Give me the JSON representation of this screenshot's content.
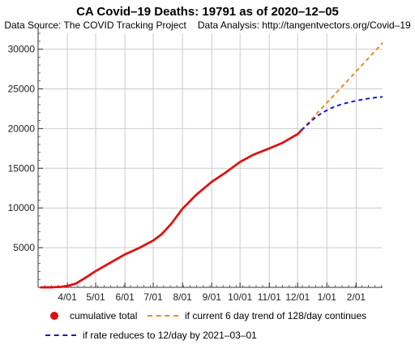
{
  "chart_data": {
    "type": "line",
    "title": "CA Covid–19 Deaths:  19791 as of 2020–12–05",
    "subtitle": {
      "source": "Data Source: The COVID Tracking Project",
      "analysis": "Data Analysis: http://tangentvectors.org/Covid–19"
    },
    "xlabel": "",
    "ylabel": "",
    "x_ticks": [
      "4/01",
      "5/01",
      "6/01",
      "7/01",
      "8/01",
      "9/01",
      "10/01",
      "11/01",
      "12/01",
      "1/01",
      "2/01"
    ],
    "x_tick_dates": [
      "2020-04-01",
      "2020-05-01",
      "2020-06-01",
      "2020-07-01",
      "2020-08-01",
      "2020-09-01",
      "2020-10-01",
      "2020-11-01",
      "2020-12-01",
      "2021-01-01",
      "2021-02-01"
    ],
    "y_ticks": [
      5000,
      10000,
      15000,
      20000,
      25000,
      30000
    ],
    "y_tick_labels": [
      "5000",
      "10000",
      "15000",
      "20000",
      "25000",
      "30000"
    ],
    "xlim": [
      "2020-03-01",
      "2021-03-01"
    ],
    "ylim": [
      0,
      32000
    ],
    "grid": true,
    "series": [
      {
        "name": "cumulative total",
        "style": "points",
        "color": "#e01010",
        "points": [
          [
            "2020-03-04",
            1
          ],
          [
            "2020-03-15",
            6
          ],
          [
            "2020-03-25",
            60
          ],
          [
            "2020-04-01",
            180
          ],
          [
            "2020-04-10",
            480
          ],
          [
            "2020-04-20",
            1200
          ],
          [
            "2020-05-01",
            2050
          ],
          [
            "2020-05-15",
            3000
          ],
          [
            "2020-06-01",
            4150
          ],
          [
            "2020-06-15",
            4900
          ],
          [
            "2020-07-01",
            5900
          ],
          [
            "2020-07-10",
            6700
          ],
          [
            "2020-07-20",
            8000
          ],
          [
            "2020-08-01",
            9900
          ],
          [
            "2020-08-15",
            11600
          ],
          [
            "2020-09-01",
            13300
          ],
          [
            "2020-09-15",
            14400
          ],
          [
            "2020-10-01",
            15800
          ],
          [
            "2020-10-15",
            16700
          ],
          [
            "2020-11-01",
            17500
          ],
          [
            "2020-11-15",
            18200
          ],
          [
            "2020-11-25",
            18900
          ],
          [
            "2020-12-01",
            19300
          ],
          [
            "2020-12-05",
            19791
          ]
        ]
      },
      {
        "name": "if current 6 day trend of 128/day continues",
        "style": "dashed",
        "color": "#f08a24",
        "points": [
          [
            "2020-12-05",
            19791
          ],
          [
            "2021-01-01",
            23250
          ],
          [
            "2021-02-01",
            27200
          ],
          [
            "2021-03-01",
            30800
          ]
        ]
      },
      {
        "name": "if rate reduces to 12/day by 2021–03–01",
        "style": "dashed",
        "color": "#1c1cc8",
        "points": [
          [
            "2020-12-05",
            19791
          ],
          [
            "2020-12-20",
            21400
          ],
          [
            "2021-01-01",
            22300
          ],
          [
            "2021-01-15",
            23000
          ],
          [
            "2021-02-01",
            23500
          ],
          [
            "2021-02-15",
            23800
          ],
          [
            "2021-03-01",
            24000
          ]
        ]
      }
    ],
    "legend": {
      "position": "bottom",
      "items": [
        {
          "label": "cumulative total",
          "marker": "dot",
          "color": "#e01010"
        },
        {
          "label": "if current 6 day trend of 128/day continues",
          "marker": "dash",
          "color": "#f08a24"
        },
        {
          "label": "if rate reduces to 12/day by 2021–03–01",
          "marker": "dash",
          "color": "#1c1cc8"
        }
      ]
    }
  }
}
